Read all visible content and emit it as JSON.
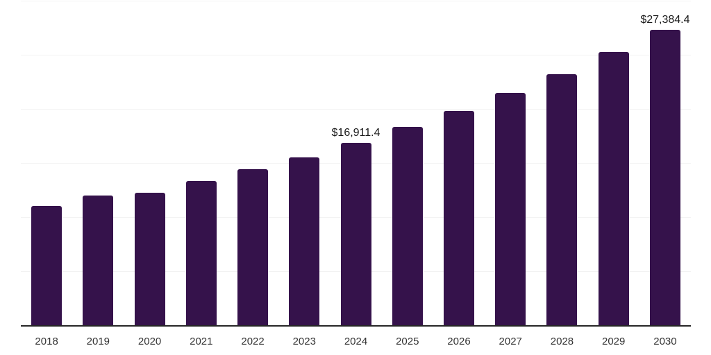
{
  "chart_data": {
    "type": "bar",
    "title": "",
    "xlabel": "",
    "ylabel": "",
    "categories": [
      "2018",
      "2019",
      "2020",
      "2021",
      "2022",
      "2023",
      "2024",
      "2025",
      "2026",
      "2027",
      "2028",
      "2029",
      "2030"
    ],
    "values": [
      11120,
      12040,
      12300,
      13400,
      14470,
      15600,
      16911.4,
      18370,
      19870,
      21510,
      23280,
      25300,
      27384.4
    ],
    "data_labels": [
      "",
      "",
      "",
      "",
      "",
      "",
      "$16,911.4",
      "",
      "",
      "",
      "",
      "",
      "$27,384.4"
    ],
    "ylim": [
      0,
      30000
    ],
    "grid_step": 5000,
    "grid_visible": true,
    "legend_position": "none",
    "colors": {
      "bar": "#35124b",
      "gridline": "#f2f2f2",
      "axis_line": "#262626",
      "data_label_text": "#1a1a1a",
      "tick_label_text": "#333333",
      "background": "#ffffff"
    }
  }
}
